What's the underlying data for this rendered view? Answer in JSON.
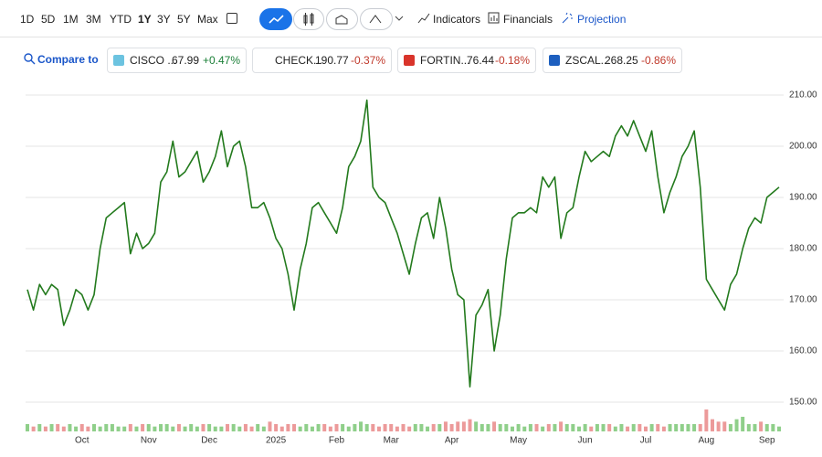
{
  "toolbar": {
    "ranges": [
      "1D",
      "5D",
      "1M",
      "3M",
      "YTD",
      "1Y",
      "3Y",
      "5Y",
      "Max"
    ],
    "selected_range": "1Y",
    "indicators": "Indicators",
    "financials": "Financials",
    "projection": "Projection"
  },
  "compare": {
    "label": "Compare to",
    "chips": [
      {
        "name": "CISCO ...",
        "price": "67.99",
        "change": "+0.47%",
        "color": "#1a7f37"
      },
      {
        "name": "CHECK...",
        "price": "190.77",
        "change": "-0.37%",
        "color": "#c0392b"
      },
      {
        "name": "FORTIN...",
        "price": "76.44",
        "change": "-0.18%",
        "color": "#c0392b"
      },
      {
        "name": "ZSCAL...",
        "price": "268.25",
        "change": "-0.86%",
        "color": "#c0392b"
      }
    ]
  },
  "chart_data": {
    "type": "line",
    "color": "#237a1d",
    "grid": true,
    "categories": [
      null,
      null,
      null,
      null,
      null,
      null,
      null,
      null,
      null,
      "Oct",
      null,
      null,
      null,
      null,
      null,
      null,
      null,
      null,
      null,
      null,
      "Nov",
      null,
      null,
      null,
      null,
      null,
      null,
      null,
      null,
      null,
      "Dec",
      null,
      null,
      null,
      null,
      null,
      null,
      null,
      null,
      null,
      null,
      "2025",
      null,
      null,
      null,
      null,
      null,
      null,
      null,
      null,
      null,
      "Feb",
      null,
      null,
      null,
      null,
      null,
      null,
      null,
      null,
      "Mar",
      null,
      null,
      null,
      null,
      null,
      null,
      null,
      null,
      null,
      "Apr",
      null,
      null,
      null,
      null,
      null,
      null,
      null,
      null,
      null,
      null,
      "May",
      null,
      null,
      null,
      null,
      null,
      null,
      null,
      null,
      null,
      null,
      "Jun",
      null,
      null,
      null,
      null,
      null,
      null,
      null,
      null,
      null,
      "Jul",
      null,
      null,
      null,
      null,
      null,
      null,
      null,
      null,
      null,
      "Aug",
      null,
      null,
      null,
      null,
      null,
      null,
      null,
      null,
      null,
      "Sep",
      null,
      null
    ],
    "values": [
      172,
      168,
      173,
      171,
      173,
      172,
      165,
      168,
      172,
      171,
      168,
      171,
      180,
      186,
      187,
      188,
      189,
      179,
      183,
      180,
      181,
      183,
      193,
      195,
      201,
      194,
      195,
      197,
      199,
      193,
      195,
      198,
      203,
      196,
      200,
      201,
      196,
      188,
      188,
      189,
      186,
      182,
      180,
      175,
      168,
      176,
      181,
      188,
      189,
      187,
      185,
      183,
      188,
      196,
      198,
      201,
      209,
      192,
      190,
      189,
      186,
      183,
      179,
      175,
      181,
      186,
      187,
      182,
      190,
      184,
      176,
      171,
      170,
      153,
      167,
      169,
      172,
      160,
      167,
      178,
      186,
      187,
      187,
      188,
      187,
      194,
      192,
      194,
      182,
      187,
      188,
      194,
      199,
      197,
      198,
      199,
      198,
      202,
      204,
      202,
      205,
      202,
      199,
      203,
      194,
      187,
      191,
      194,
      198,
      200,
      203,
      192,
      174,
      172,
      170,
      168,
      173,
      175,
      180,
      184,
      186,
      185,
      190,
      191,
      192
    ],
    "volume": [
      3,
      2,
      3,
      2,
      3,
      3,
      2,
      3,
      2,
      3,
      2,
      3,
      2,
      3,
      3,
      2,
      2,
      3,
      2,
      3,
      3,
      2,
      3,
      3,
      2,
      3,
      2,
      3,
      2,
      3,
      3,
      2,
      2,
      3,
      3,
      2,
      3,
      2,
      3,
      2,
      4,
      3,
      2,
      3,
      3,
      2,
      3,
      2,
      3,
      3,
      2,
      3,
      3,
      2,
      3,
      4,
      3,
      3,
      2,
      3,
      3,
      2,
      3,
      2,
      3,
      3,
      2,
      3,
      3,
      4,
      3,
      4,
      4,
      5,
      4,
      3,
      3,
      4,
      3,
      3,
      2,
      3,
      2,
      3,
      3,
      2,
      3,
      3,
      4,
      3,
      3,
      2,
      3,
      2,
      3,
      3,
      3,
      2,
      3,
      2,
      3,
      3,
      2,
      3,
      3,
      2,
      3,
      3,
      3,
      3,
      3,
      3,
      9,
      5,
      4,
      4,
      3,
      5,
      6,
      3,
      3,
      4,
      3,
      3,
      2
    ],
    "ylim": [
      150,
      210
    ],
    "yticks": [
      {
        "value": 150,
        "label": "150.00"
      },
      {
        "value": 160,
        "label": "160.00"
      },
      {
        "value": 170,
        "label": "170.00"
      },
      {
        "value": 180,
        "label": "180.00"
      },
      {
        "value": 190,
        "label": "190.00"
      },
      {
        "value": 200,
        "label": "200.00"
      },
      {
        "value": 210,
        "label": "210.00"
      }
    ]
  }
}
